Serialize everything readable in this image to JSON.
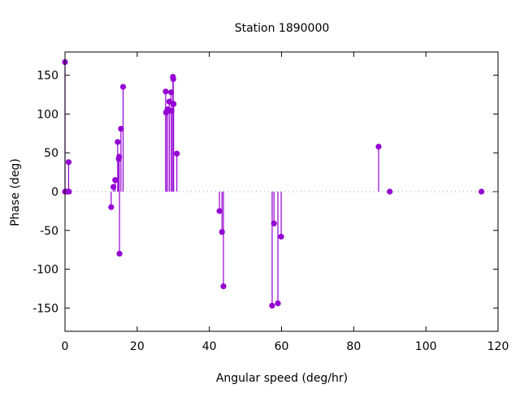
{
  "chart_data": {
    "type": "scatter",
    "style": "impulses with points",
    "title": "Station 1890000",
    "xlabel": "Angular speed (deg/hr)",
    "ylabel": "Phase (deg)",
    "xlim": [
      0,
      120
    ],
    "ylim": [
      -180,
      180
    ],
    "xticks": [
      0,
      20,
      40,
      60,
      80,
      100,
      120
    ],
    "yticks": [
      -150,
      -100,
      -50,
      0,
      50,
      100,
      150
    ],
    "grid": false,
    "zero_line": true,
    "color": "#9400d3",
    "points": [
      [
        0.0,
        167
      ],
      [
        0.0,
        0
      ],
      [
        0.5,
        0
      ],
      [
        1.0,
        38
      ],
      [
        1.1,
        0
      ],
      [
        12.8,
        -20
      ],
      [
        13.4,
        6
      ],
      [
        13.9,
        15
      ],
      [
        14.6,
        64
      ],
      [
        14.9,
        42
      ],
      [
        15.0,
        45
      ],
      [
        15.1,
        -80
      ],
      [
        15.5,
        81
      ],
      [
        16.1,
        135
      ],
      [
        27.9,
        129
      ],
      [
        28.0,
        102
      ],
      [
        28.4,
        106
      ],
      [
        28.9,
        116
      ],
      [
        29.4,
        128
      ],
      [
        29.5,
        104
      ],
      [
        29.9,
        148
      ],
      [
        30.0,
        145
      ],
      [
        30.1,
        113
      ],
      [
        31.0,
        49
      ],
      [
        42.8,
        -25
      ],
      [
        43.5,
        -52
      ],
      [
        43.9,
        -122
      ],
      [
        57.4,
        -147
      ],
      [
        57.9,
        -41
      ],
      [
        59.0,
        -144
      ],
      [
        59.9,
        -58
      ],
      [
        86.9,
        58
      ],
      [
        90.0,
        0
      ],
      [
        115.4,
        0
      ]
    ]
  }
}
